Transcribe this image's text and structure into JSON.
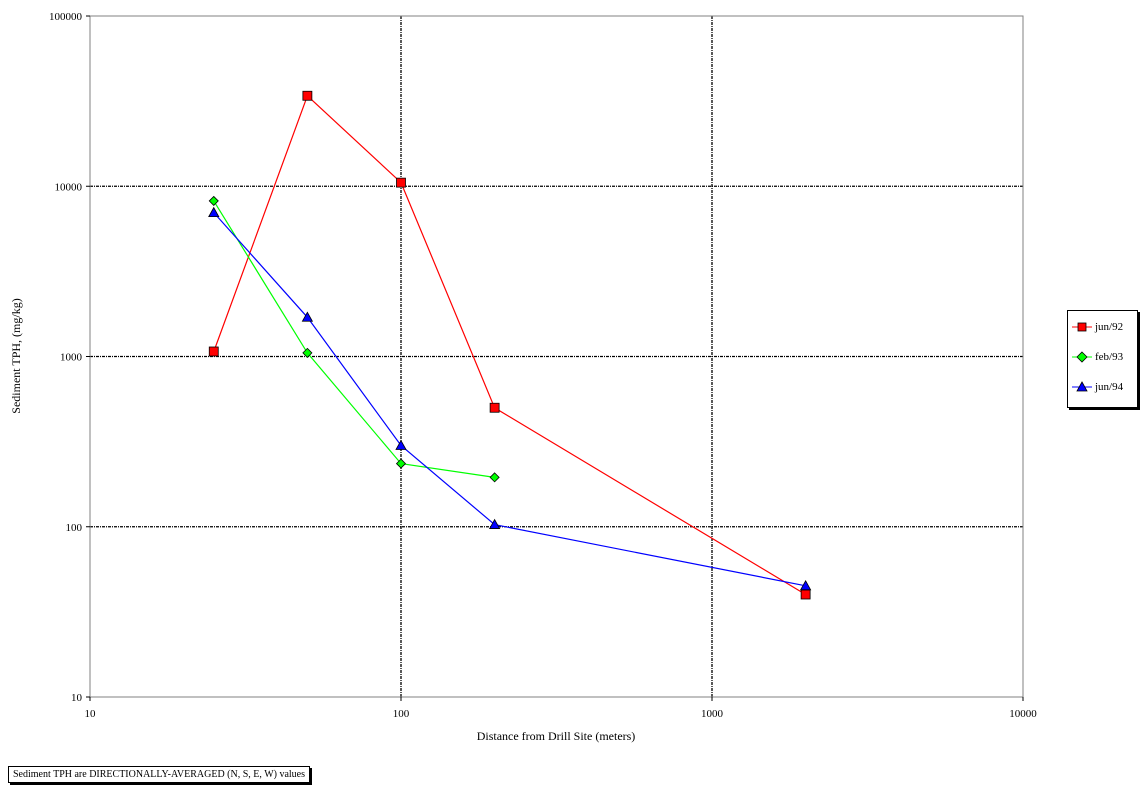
{
  "chart_data": {
    "type": "line",
    "title": "",
    "xlabel": "Distance from Drill Site (meters)",
    "ylabel": "Sediment TPH, (mg/kg)",
    "xscale": "log",
    "yscale": "log",
    "xlim": [
      10,
      10000
    ],
    "ylim": [
      10,
      100000
    ],
    "x_ticks": [
      "10",
      "100",
      "1000",
      "10000"
    ],
    "y_ticks": [
      "10",
      "100",
      "1000",
      "10000",
      "100000"
    ],
    "grid": "major, dotted",
    "legend_position": "right",
    "series": [
      {
        "name": "jun/92",
        "color": "#ff0000",
        "marker": "square",
        "x": [
          25,
          50,
          100,
          200,
          2000
        ],
        "y": [
          1070,
          34000,
          10500,
          500,
          40
        ]
      },
      {
        "name": "feb/93",
        "color": "#00ff00",
        "marker": "diamond",
        "x": [
          25,
          50,
          100,
          200
        ],
        "y": [
          8200,
          1050,
          235,
          195
        ]
      },
      {
        "name": "jun/94",
        "color": "#0000ff",
        "marker": "triangle",
        "x": [
          25,
          50,
          100,
          200,
          2000
        ],
        "y": [
          7000,
          1700,
          300,
          103,
          45
        ]
      }
    ]
  },
  "note": "Sediment TPH are DIRECTIONALLY-AVERAGED (N, S, E, W) values"
}
